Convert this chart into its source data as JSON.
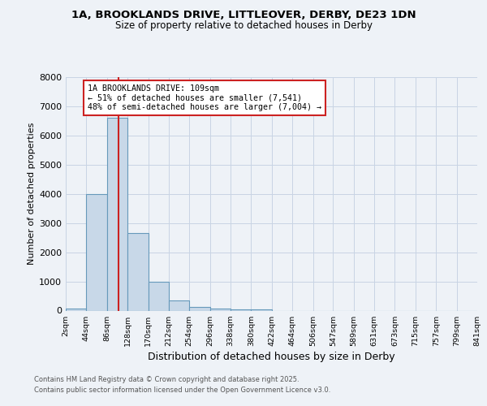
{
  "title1": "1A, BROOKLANDS DRIVE, LITTLEOVER, DERBY, DE23 1DN",
  "title2": "Size of property relative to detached houses in Derby",
  "xlabel": "Distribution of detached houses by size in Derby",
  "ylabel": "Number of detached properties",
  "bin_edges": [
    2,
    44,
    86,
    128,
    170,
    212,
    254,
    296,
    338,
    380,
    422,
    464,
    506,
    547,
    589,
    631,
    673,
    715,
    757,
    799,
    841
  ],
  "bar_heights": [
    80,
    4000,
    6600,
    2650,
    1000,
    350,
    130,
    80,
    50,
    50,
    0,
    0,
    0,
    0,
    0,
    0,
    0,
    0,
    0,
    0
  ],
  "bar_color": "#c8d8e8",
  "bar_edge_color": "#6699bb",
  "vline_x": 109,
  "vline_color": "#cc2222",
  "annotation_text": "1A BROOKLANDS DRIVE: 109sqm\n← 51% of detached houses are smaller (7,541)\n48% of semi-detached houses are larger (7,004) →",
  "annotation_box_color": "#ffffff",
  "annotation_box_edge": "#cc2222",
  "ylim": [
    0,
    8000
  ],
  "yticks": [
    0,
    1000,
    2000,
    3000,
    4000,
    5000,
    6000,
    7000,
    8000
  ],
  "footer1": "Contains HM Land Registry data © Crown copyright and database right 2025.",
  "footer2": "Contains public sector information licensed under the Open Government Licence v3.0.",
  "bg_color": "#eef2f7",
  "plot_bg_color": "#eef2f7",
  "grid_color": "#c8d4e4"
}
